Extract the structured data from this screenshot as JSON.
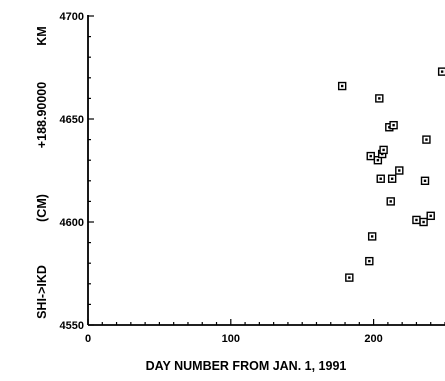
{
  "chart_data": {
    "type": "scatter",
    "title": "",
    "xlabel": "DAY NUMBER FROM JAN. 1, 1991",
    "ylabel_parts": [
      "SHI->IKD",
      "(CM)",
      "+188.90000",
      "KM"
    ],
    "xlim": [
      0,
      250
    ],
    "ylim": [
      4550,
      4700
    ],
    "x_ticks": [
      0,
      100,
      200
    ],
    "x_tick_labels": [
      "0",
      "100",
      "200"
    ],
    "y_ticks": [
      4550,
      4600,
      4650,
      4700
    ],
    "y_tick_labels": [
      "4550",
      "4600",
      "4650",
      "4700"
    ],
    "grid": false,
    "marker": "square",
    "series": [
      {
        "points": [
          {
            "x": 178,
            "y": 4666
          },
          {
            "x": 183,
            "y": 4573
          },
          {
            "x": 197,
            "y": 4581
          },
          {
            "x": 198,
            "y": 4632
          },
          {
            "x": 199,
            "y": 4593
          },
          {
            "x": 203,
            "y": 4630
          },
          {
            "x": 204,
            "y": 4660
          },
          {
            "x": 205,
            "y": 4621
          },
          {
            "x": 206,
            "y": 4633
          },
          {
            "x": 207,
            "y": 4635
          },
          {
            "x": 211,
            "y": 4646
          },
          {
            "x": 212,
            "y": 4610
          },
          {
            "x": 213,
            "y": 4621
          },
          {
            "x": 214,
            "y": 4647
          },
          {
            "x": 218,
            "y": 4625
          },
          {
            "x": 230,
            "y": 4601
          },
          {
            "x": 235,
            "y": 4600
          },
          {
            "x": 236,
            "y": 4620
          },
          {
            "x": 237,
            "y": 4640
          },
          {
            "x": 240,
            "y": 4603
          },
          {
            "x": 248,
            "y": 4673
          }
        ]
      }
    ]
  }
}
